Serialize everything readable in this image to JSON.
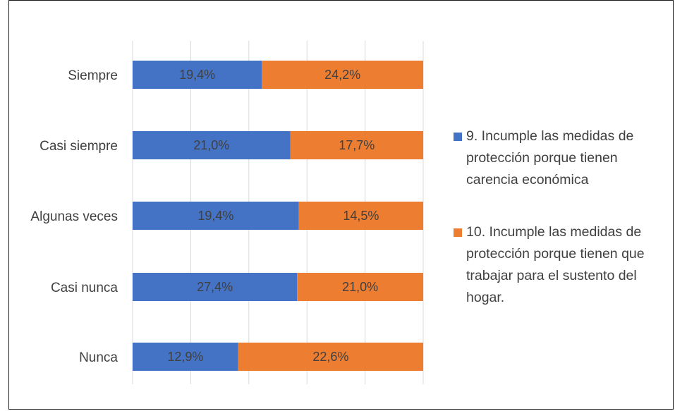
{
  "chart_data": {
    "type": "bar",
    "orientation": "horizontal",
    "stacked": "100%",
    "categories": [
      "Siempre",
      "Casi siempre",
      "Algunas veces",
      "Casi nunca",
      "Nunca"
    ],
    "series": [
      {
        "name": "9. Incumple las medidas de protección porque tienen carencia económica",
        "color": "#4472C4",
        "values": [
          19.4,
          21.0,
          19.4,
          27.4,
          12.9
        ],
        "labels": [
          "19,4%",
          "21,0%",
          "19,4%",
          "27,4%",
          "12,9%"
        ]
      },
      {
        "name": "10. Incumple las medidas de protección porque tienen que trabajar para el sustento del hogar.",
        "color": "#ED7D31",
        "values": [
          24.2,
          17.7,
          14.5,
          21.0,
          22.6
        ],
        "labels": [
          "24,2%",
          "17,7%",
          "14,5%",
          "21,0%",
          "22,6%"
        ]
      }
    ],
    "grid": true,
    "legend_position": "right"
  },
  "legend": {
    "items": [
      {
        "label_lines": [
          "9. Incumple las medidas de",
          "protección porque tienen",
          "carencia económica"
        ],
        "color": "#4472C4"
      },
      {
        "label_lines": [
          "10. Incumple las medidas de",
          "protección porque tienen que",
          "trabajar para el sustento del",
          "hogar."
        ],
        "color": "#ED7D31"
      }
    ]
  }
}
